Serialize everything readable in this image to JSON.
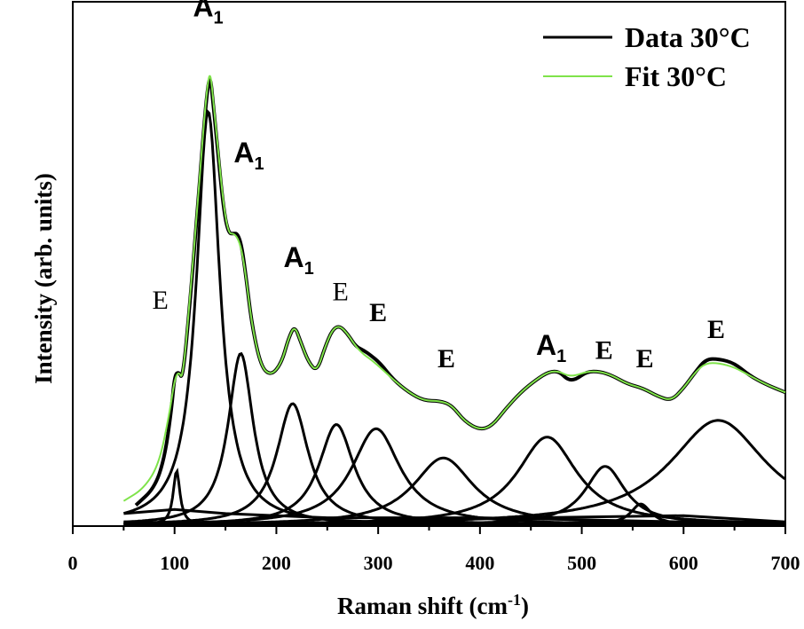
{
  "chart_data": {
    "type": "line",
    "xlabel": "Raman shift (cm",
    "xlabel_sup": "-1",
    "xlabel_tail": ")",
    "ylabel": "Intensity (arb. units)",
    "xlim": [
      0,
      700
    ],
    "ylim": [
      0,
      1
    ],
    "x_ticks": [
      "0",
      "100",
      "200",
      "300",
      "400",
      "500",
      "600",
      "700"
    ],
    "legend": [
      {
        "label": "Data 30°C",
        "color": "#000000"
      },
      {
        "label": "Fit 30°C",
        "color": "#7fe34a"
      }
    ],
    "legend_position": "top-right",
    "series": [
      {
        "name": "Data 30°C",
        "color": "#000000",
        "points": [
          [
            62,
            0.05
          ],
          [
            80,
            0.09
          ],
          [
            90,
            0.16
          ],
          [
            97,
            0.28
          ],
          [
            100,
            0.36
          ],
          [
            104,
            0.37
          ],
          [
            108,
            0.35
          ],
          [
            115,
            0.53
          ],
          [
            122,
            0.74
          ],
          [
            128,
            0.93
          ],
          [
            132,
            1.04
          ],
          [
            135,
            1.08
          ],
          [
            138,
            1.01
          ],
          [
            142,
            0.91
          ],
          [
            148,
            0.76
          ],
          [
            153,
            0.7
          ],
          [
            158,
            0.7
          ],
          [
            162,
            0.7
          ],
          [
            166,
            0.67
          ],
          [
            170,
            0.6
          ],
          [
            176,
            0.48
          ],
          [
            185,
            0.38
          ],
          [
            195,
            0.36
          ],
          [
            205,
            0.39
          ],
          [
            212,
            0.45
          ],
          [
            218,
            0.48
          ],
          [
            224,
            0.44
          ],
          [
            232,
            0.39
          ],
          [
            240,
            0.37
          ],
          [
            248,
            0.43
          ],
          [
            255,
            0.47
          ],
          [
            262,
            0.48
          ],
          [
            270,
            0.46
          ],
          [
            278,
            0.43
          ],
          [
            286,
            0.42
          ],
          [
            292,
            0.41
          ],
          [
            302,
            0.39
          ],
          [
            315,
            0.35
          ],
          [
            330,
            0.32
          ],
          [
            345,
            0.3
          ],
          [
            360,
            0.3
          ],
          [
            372,
            0.29
          ],
          [
            385,
            0.25
          ],
          [
            400,
            0.23
          ],
          [
            412,
            0.24
          ],
          [
            425,
            0.28
          ],
          [
            440,
            0.32
          ],
          [
            455,
            0.35
          ],
          [
            468,
            0.37
          ],
          [
            478,
            0.37
          ],
          [
            486,
            0.35
          ],
          [
            494,
            0.35
          ],
          [
            505,
            0.37
          ],
          [
            518,
            0.37
          ],
          [
            530,
            0.36
          ],
          [
            545,
            0.34
          ],
          [
            560,
            0.33
          ],
          [
            575,
            0.31
          ],
          [
            588,
            0.3
          ],
          [
            600,
            0.33
          ],
          [
            612,
            0.37
          ],
          [
            622,
            0.4
          ],
          [
            635,
            0.4
          ],
          [
            650,
            0.39
          ],
          [
            665,
            0.36
          ],
          [
            680,
            0.34
          ],
          [
            700,
            0.32
          ]
        ]
      },
      {
        "name": "Fit 30°C",
        "color": "#7fe34a",
        "points": [
          [
            50,
            0.06
          ],
          [
            70,
            0.09
          ],
          [
            85,
            0.15
          ],
          [
            95,
            0.27
          ],
          [
            100,
            0.35
          ],
          [
            104,
            0.37
          ],
          [
            108,
            0.35
          ],
          [
            115,
            0.54
          ],
          [
            122,
            0.75
          ],
          [
            128,
            0.94
          ],
          [
            132,
            1.05
          ],
          [
            135,
            1.09
          ],
          [
            138,
            1.02
          ],
          [
            142,
            0.92
          ],
          [
            148,
            0.77
          ],
          [
            153,
            0.7
          ],
          [
            158,
            0.7
          ],
          [
            162,
            0.69
          ],
          [
            166,
            0.66
          ],
          [
            170,
            0.6
          ],
          [
            176,
            0.48
          ],
          [
            185,
            0.38
          ],
          [
            195,
            0.36
          ],
          [
            205,
            0.39
          ],
          [
            212,
            0.45
          ],
          [
            218,
            0.48
          ],
          [
            224,
            0.44
          ],
          [
            232,
            0.39
          ],
          [
            240,
            0.37
          ],
          [
            248,
            0.43
          ],
          [
            255,
            0.47
          ],
          [
            262,
            0.48
          ],
          [
            270,
            0.46
          ],
          [
            278,
            0.43
          ],
          [
            286,
            0.41
          ],
          [
            292,
            0.4
          ],
          [
            302,
            0.38
          ],
          [
            315,
            0.35
          ],
          [
            330,
            0.32
          ],
          [
            345,
            0.3
          ],
          [
            360,
            0.3
          ],
          [
            372,
            0.29
          ],
          [
            385,
            0.25
          ],
          [
            400,
            0.23
          ],
          [
            412,
            0.24
          ],
          [
            425,
            0.28
          ],
          [
            440,
            0.32
          ],
          [
            455,
            0.35
          ],
          [
            468,
            0.37
          ],
          [
            478,
            0.37
          ],
          [
            486,
            0.36
          ],
          [
            494,
            0.36
          ],
          [
            505,
            0.37
          ],
          [
            518,
            0.37
          ],
          [
            530,
            0.36
          ],
          [
            545,
            0.34
          ],
          [
            560,
            0.33
          ],
          [
            575,
            0.31
          ],
          [
            588,
            0.3
          ],
          [
            600,
            0.33
          ],
          [
            612,
            0.37
          ],
          [
            622,
            0.39
          ],
          [
            635,
            0.39
          ],
          [
            650,
            0.38
          ],
          [
            665,
            0.36
          ],
          [
            680,
            0.34
          ],
          [
            700,
            0.32
          ]
        ]
      }
    ],
    "components": [
      {
        "center": 102,
        "height": 0.13,
        "width": 4
      },
      {
        "center": 133,
        "height": 0.99,
        "width": 14
      },
      {
        "center": 165,
        "height": 0.41,
        "width": 15
      },
      {
        "center": 216,
        "height": 0.29,
        "width": 19
      },
      {
        "center": 259,
        "height": 0.24,
        "width": 21
      },
      {
        "center": 298,
        "height": 0.23,
        "width": 29
      },
      {
        "center": 364,
        "height": 0.16,
        "width": 36
      },
      {
        "center": 466,
        "height": 0.21,
        "width": 36
      },
      {
        "center": 523,
        "height": 0.14,
        "width": 24
      },
      {
        "center": 558,
        "height": 0.05,
        "width": 12
      },
      {
        "center": 634,
        "height": 0.25,
        "width": 58
      }
    ],
    "baseline": [
      [
        [
          50,
          0.03
        ],
        [
          100,
          0.04
        ],
        [
          150,
          0.03
        ],
        [
          250,
          0.02
        ],
        [
          400,
          0.02
        ],
        [
          600,
          0.01
        ],
        [
          700,
          0.005
        ]
      ],
      [
        [
          50,
          0.01
        ],
        [
          200,
          0.005
        ],
        [
          450,
          0.02
        ],
        [
          600,
          0.025
        ],
        [
          700,
          0.01
        ]
      ]
    ],
    "annotations": [
      {
        "text": "A",
        "sub": "1",
        "x": 133,
        "y": 1.22,
        "style": "a"
      },
      {
        "text": "A",
        "sub": "1",
        "x": 173,
        "y": 0.87,
        "style": "a"
      },
      {
        "text": "A",
        "sub": "1",
        "x": 222,
        "y": 0.62,
        "style": "a"
      },
      {
        "text": "E",
        "x": 86,
        "y": 0.52,
        "style": "e"
      },
      {
        "text": "E",
        "x": 263,
        "y": 0.54,
        "style": "e"
      },
      {
        "text": "E",
        "x": 300,
        "y": 0.49,
        "style": "e-bold"
      },
      {
        "text": "E",
        "x": 367,
        "y": 0.38,
        "style": "e-bold"
      },
      {
        "text": "A",
        "sub": "1",
        "x": 470,
        "y": 0.41,
        "style": "a"
      },
      {
        "text": "E",
        "x": 522,
        "y": 0.4,
        "style": "e-bold"
      },
      {
        "text": "E",
        "x": 562,
        "y": 0.38,
        "style": "e-bold"
      },
      {
        "text": "E",
        "x": 632,
        "y": 0.45,
        "style": "e-bold"
      }
    ]
  }
}
